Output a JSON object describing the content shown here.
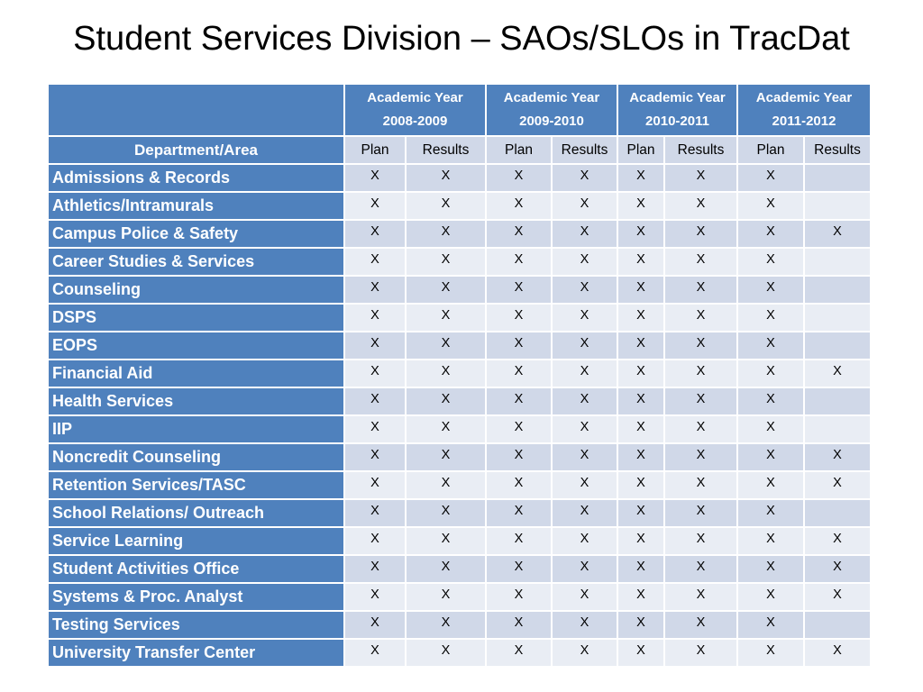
{
  "slide": {
    "title": "Student Services Division – SAOs/SLOs in TracDat"
  },
  "table": {
    "years": [
      {
        "line1": "Academic Year",
        "line2": "2008-2009"
      },
      {
        "line1": "Academic Year",
        "line2": "2009-2010"
      },
      {
        "line1": "Academic Year",
        "line2": "2010-2011"
      },
      {
        "line1": "Academic Year",
        "line2": "2011-2012"
      }
    ],
    "department_header": "Department/Area",
    "sub_headers": [
      "Plan",
      "Results",
      "Plan",
      "Results",
      "Plan",
      "Results",
      "Plan",
      "Results"
    ],
    "rows": [
      {
        "name": "Admissions & Records",
        "cells": [
          "X",
          "X",
          "X",
          "X",
          "X",
          "X",
          "X",
          ""
        ]
      },
      {
        "name": "Athletics/Intramurals",
        "cells": [
          "X",
          "X",
          "X",
          "X",
          "X",
          "X",
          "X",
          ""
        ]
      },
      {
        "name": "Campus Police  & Safety",
        "cells": [
          "X",
          "X",
          "X",
          "X",
          "X",
          "X",
          "X",
          "X"
        ]
      },
      {
        "name": "Career Studies & Services",
        "cells": [
          "X",
          "X",
          "X",
          "X",
          "X",
          "X",
          "X",
          ""
        ]
      },
      {
        "name": "Counseling",
        "cells": [
          "X",
          "X",
          "X",
          "X",
          "X",
          "X",
          "X",
          ""
        ]
      },
      {
        "name": "DSPS",
        "cells": [
          "X",
          "X",
          "X",
          "X",
          "X",
          "X",
          "X",
          ""
        ]
      },
      {
        "name": "EOPS",
        "cells": [
          "X",
          "X",
          "X",
          "X",
          "X",
          "X",
          "X",
          ""
        ]
      },
      {
        "name": "Financial Aid",
        "cells": [
          "X",
          "X",
          "X",
          "X",
          "X",
          "X",
          "X",
          "X"
        ]
      },
      {
        "name": "Health Services",
        "cells": [
          "X",
          "X",
          "X",
          "X",
          "X",
          "X",
          "X",
          ""
        ]
      },
      {
        "name": "IIP",
        "cells": [
          "X",
          "X",
          "X",
          "X",
          "X",
          "X",
          "X",
          ""
        ]
      },
      {
        "name": "Noncredit Counseling",
        "cells": [
          "X",
          "X",
          "X",
          "X",
          "X",
          "X",
          "X",
          "X"
        ]
      },
      {
        "name": "Retention Services/TASC",
        "cells": [
          "X",
          "X",
          "X",
          "X",
          "X",
          "X",
          "X",
          "X"
        ]
      },
      {
        "name": "School Relations/ Outreach",
        "cells": [
          "X",
          "X",
          "X",
          "X",
          "X",
          "X",
          "X",
          ""
        ]
      },
      {
        "name": "Service Learning",
        "cells": [
          "X",
          "X",
          "X",
          "X",
          "X",
          "X",
          "X",
          "X"
        ]
      },
      {
        "name": "Student Activities Office",
        "cells": [
          "X",
          "X",
          "X",
          "X",
          "X",
          "X",
          "X",
          "X"
        ]
      },
      {
        "name": "Systems & Proc. Analyst",
        "cells": [
          "X",
          "X",
          "X",
          "X",
          "X",
          "X",
          "X",
          "X"
        ]
      },
      {
        "name": "Testing Services",
        "cells": [
          "X",
          "X",
          "X",
          "X",
          "X",
          "X",
          "X",
          ""
        ]
      },
      {
        "name": "University Transfer Center",
        "cells": [
          "X",
          "X",
          "X",
          "X",
          "X",
          "X",
          "X",
          "X"
        ]
      }
    ]
  },
  "colors": {
    "header_blue": "#4f81bd",
    "row_dark": "#d0d8e8",
    "row_light": "#e9edf4"
  }
}
